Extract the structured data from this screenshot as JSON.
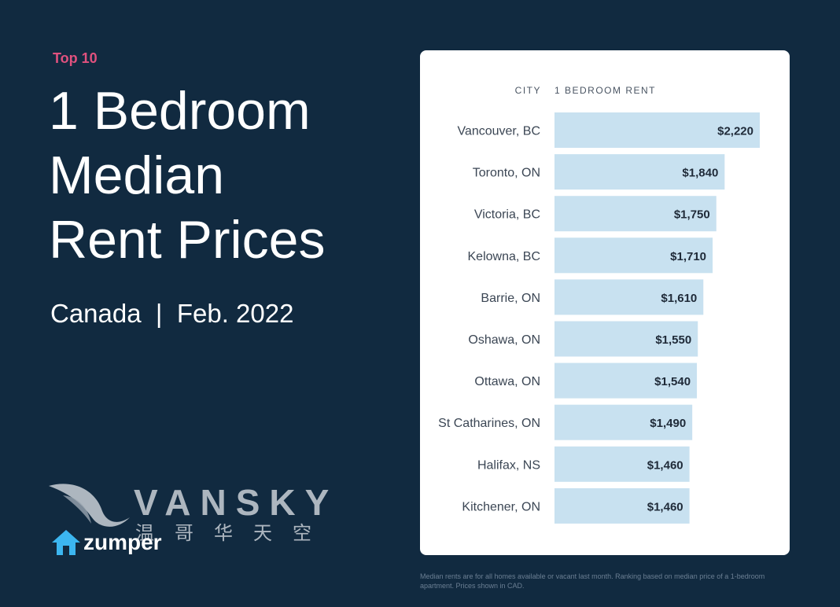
{
  "kicker": "Top 10",
  "title_lines": [
    "1 Bedroom",
    "Median",
    "Rent Prices"
  ],
  "subtitle": "Canada  |  Feb. 2022",
  "footnote": "Median rents are for all homes available or vacant last month. Ranking based on median price of a 1-bedroom apartment. Prices shown in CAD.",
  "branding": {
    "watermark_text": "VANSKY",
    "watermark_cn": "温哥华天空",
    "logo_text": "zumper",
    "logo_icon": "house-icon",
    "watermark_icon": "bird-logo-icon"
  },
  "colors": {
    "background": "#112a40",
    "bar": "#c8e1f0",
    "kicker": "#e0517e",
    "logo_blue": "#3cb6f0"
  },
  "chart_data": {
    "type": "bar",
    "orientation": "horizontal",
    "column_headers": {
      "city": "CITY",
      "value": "1 BEDROOM RENT"
    },
    "categories": [
      "Vancouver, BC",
      "Toronto, ON",
      "Victoria, BC",
      "Kelowna, BC",
      "Barrie, ON",
      "Oshawa, ON",
      "Ottawa, ON",
      "St Catharines, ON",
      "Halifax, NS",
      "Kitchener, ON"
    ],
    "values": [
      2220,
      1840,
      1750,
      1710,
      1610,
      1550,
      1540,
      1490,
      1460,
      1460
    ],
    "value_labels": [
      "$2,220",
      "$1,840",
      "$1,750",
      "$1,710",
      "$1,610",
      "$1,550",
      "$1,540",
      "$1,490",
      "$1,460",
      "$1,460"
    ],
    "xlim": [
      0,
      2220
    ],
    "grid": false,
    "legend": "none"
  }
}
